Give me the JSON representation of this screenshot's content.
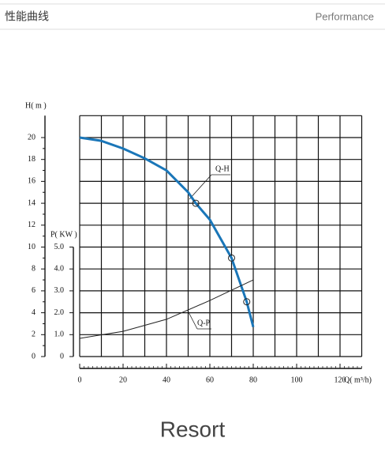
{
  "header": {
    "title": "性能曲线",
    "subtitle": "Performance"
  },
  "chart_data": {
    "type": "line",
    "ylabel": "H( m )",
    "y2label": "P( KW )",
    "xlabel": "Q( m³/h)",
    "xlim": [
      0,
      130
    ],
    "xticks": [
      0,
      20,
      40,
      60,
      80,
      100,
      120
    ],
    "xgrid": [
      0,
      10,
      20,
      30,
      40,
      50,
      60,
      70,
      80,
      90,
      100,
      110,
      120,
      130
    ],
    "ylim": [
      0,
      22
    ],
    "yticks": [
      0,
      2,
      4,
      6,
      8,
      10,
      12,
      14,
      16,
      18,
      20
    ],
    "y2lim": [
      0,
      11
    ],
    "y2ticks": [
      0,
      {
        "value": 1,
        "label": "1.0"
      },
      {
        "value": 2,
        "label": "2.0"
      },
      {
        "value": 3,
        "label": "3.0"
      },
      {
        "value": 4,
        "label": "4.0"
      },
      {
        "value": 5,
        "label": "5.0"
      }
    ],
    "grid": true,
    "series": [
      {
        "name": "Q-H",
        "color": "#1a76b8",
        "x": [
          0,
          10,
          20,
          30,
          40,
          50,
          53.5,
          60,
          70,
          77,
          80
        ],
        "values": [
          20,
          19.7,
          19,
          18.1,
          17,
          15,
          14,
          12.5,
          9,
          5,
          2.7
        ],
        "markers": [
          53.5,
          70,
          77
        ]
      },
      {
        "name": "Q-P",
        "color": "#222222",
        "axis": "y2",
        "x": [
          0,
          20,
          40,
          60,
          80
        ],
        "values": [
          0.83,
          1.15,
          1.7,
          2.56,
          3.5
        ]
      }
    ]
  },
  "footer": "Resort"
}
